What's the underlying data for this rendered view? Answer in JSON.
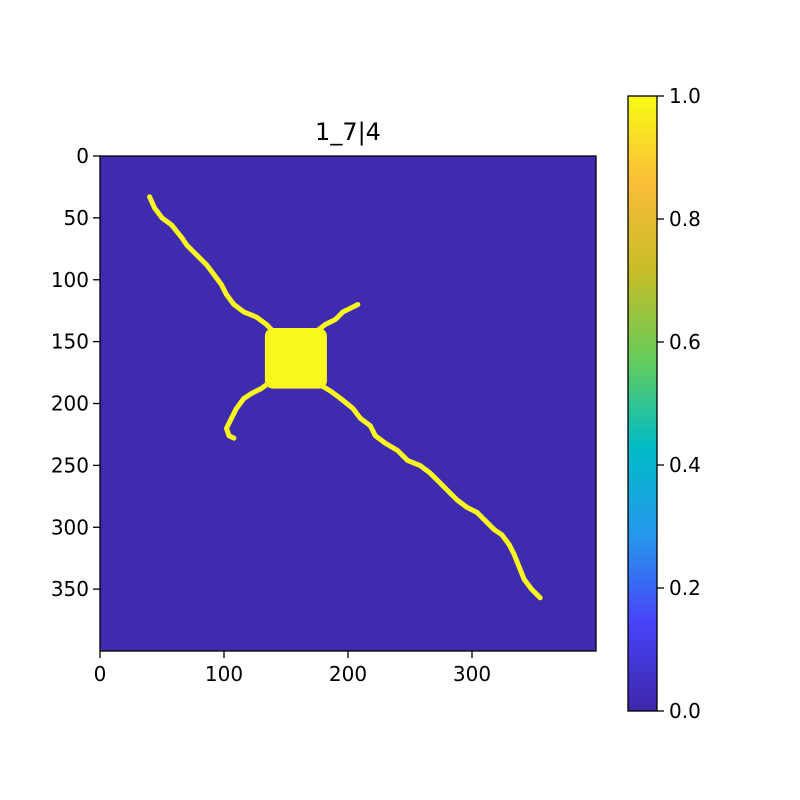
{
  "chart_data": {
    "type": "heatmap",
    "title": "1_7|4",
    "xlabel": "",
    "ylabel": "",
    "xlim": [
      0,
      400
    ],
    "ylim": [
      400,
      0
    ],
    "x_ticks": [
      0,
      100,
      200,
      300
    ],
    "x_tick_labels": [
      "0",
      "100",
      "200",
      "300"
    ],
    "y_ticks": [
      0,
      50,
      100,
      150,
      200,
      250,
      300,
      350
    ],
    "y_tick_labels": [
      "0",
      "50",
      "100",
      "150",
      "200",
      "250",
      "300",
      "350"
    ],
    "value_range": [
      0.0,
      1.0
    ],
    "colorbar": {
      "ticks": [
        0.0,
        0.2,
        0.4,
        0.6,
        0.8,
        1.0
      ],
      "tick_labels": [
        "0.0",
        "0.2",
        "0.4",
        "0.6",
        "0.8",
        "1.0"
      ],
      "colors": [
        "#3e26a8",
        "#4743f8",
        "#2797eb",
        "#00bcc7",
        "#66cc5b",
        "#c6bd27",
        "#fbbc39",
        "#f9fb15"
      ]
    },
    "background_value": 0.0,
    "foreground_value": 1.0,
    "background_color": "#3e2bad",
    "foreground_color": "#f9f71e",
    "blob": {
      "x_range": [
        133,
        183
      ],
      "y_range": [
        139,
        188
      ],
      "value": 1.0
    },
    "paths": [
      {
        "name": "main-diagonal-upper",
        "points": [
          [
            40,
            33
          ],
          [
            44,
            42
          ],
          [
            50,
            50
          ],
          [
            58,
            56
          ],
          [
            66,
            66
          ],
          [
            70,
            72
          ],
          [
            78,
            80
          ],
          [
            86,
            88
          ],
          [
            92,
            96
          ],
          [
            98,
            104
          ],
          [
            102,
            112
          ],
          [
            108,
            120
          ],
          [
            116,
            126
          ],
          [
            126,
            130
          ],
          [
            134,
            136
          ],
          [
            138,
            140
          ]
        ]
      },
      {
        "name": "main-diagonal-lower",
        "points": [
          [
            176,
            184
          ],
          [
            186,
            190
          ],
          [
            194,
            196
          ],
          [
            204,
            204
          ],
          [
            210,
            212
          ],
          [
            218,
            218
          ],
          [
            222,
            226
          ],
          [
            230,
            232
          ],
          [
            240,
            238
          ],
          [
            248,
            246
          ],
          [
            258,
            250
          ],
          [
            266,
            256
          ],
          [
            272,
            262
          ],
          [
            280,
            270
          ],
          [
            288,
            278
          ],
          [
            296,
            284
          ],
          [
            304,
            288
          ],
          [
            312,
            296
          ],
          [
            318,
            302
          ],
          [
            324,
            306
          ],
          [
            330,
            314
          ],
          [
            334,
            322
          ],
          [
            338,
            332
          ],
          [
            342,
            342
          ],
          [
            348,
            350
          ],
          [
            355,
            357
          ]
        ]
      },
      {
        "name": "branch-upper-right",
        "points": [
          [
            174,
            142
          ],
          [
            182,
            136
          ],
          [
            190,
            132
          ],
          [
            196,
            126
          ],
          [
            204,
            122
          ],
          [
            208,
            120
          ]
        ]
      },
      {
        "name": "branch-lower-left",
        "points": [
          [
            138,
            182
          ],
          [
            130,
            188
          ],
          [
            122,
            192
          ],
          [
            116,
            196
          ],
          [
            110,
            204
          ],
          [
            106,
            212
          ],
          [
            102,
            220
          ],
          [
            104,
            226
          ],
          [
            108,
            228
          ]
        ]
      }
    ]
  }
}
